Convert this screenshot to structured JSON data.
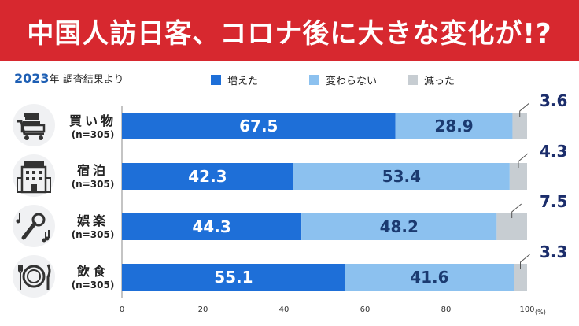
{
  "title": "中国人訪日客、コロナ後に大きな変化が!?",
  "source": {
    "year": "2023",
    "year_suffix": "年",
    "text": "調査結果より"
  },
  "colors": {
    "title_bg": "#d7282f",
    "increased": "#1e6fd8",
    "unchanged": "#8cc1ef",
    "decreased": "#c7cdd2",
    "callout": "#1b2d6b"
  },
  "chart_data": {
    "type": "bar",
    "orientation": "horizontal",
    "stacked": true,
    "categories": [
      "買い物",
      "宿泊",
      "娯楽",
      "飲食"
    ],
    "category_sublabels": [
      "(n=305)",
      "(n=305)",
      "(n=305)",
      "(n=305)"
    ],
    "series": [
      {
        "name": "増えた",
        "values": [
          67.5,
          42.3,
          44.3,
          55.1
        ]
      },
      {
        "name": "変わらない",
        "values": [
          28.9,
          53.4,
          48.2,
          41.6
        ]
      },
      {
        "name": "減った",
        "values": [
          3.6,
          4.3,
          7.5,
          3.3
        ]
      }
    ],
    "xlim": [
      0,
      100
    ],
    "xticks": [
      0,
      20,
      40,
      60,
      80,
      100
    ],
    "xunit": "(%)",
    "legend_position": "top",
    "grid": false
  },
  "rows": [
    {
      "icon": "shopping-cart-icon"
    },
    {
      "icon": "hotel-icon"
    },
    {
      "icon": "microphone-music-icon"
    },
    {
      "icon": "plate-utensils-icon"
    }
  ]
}
